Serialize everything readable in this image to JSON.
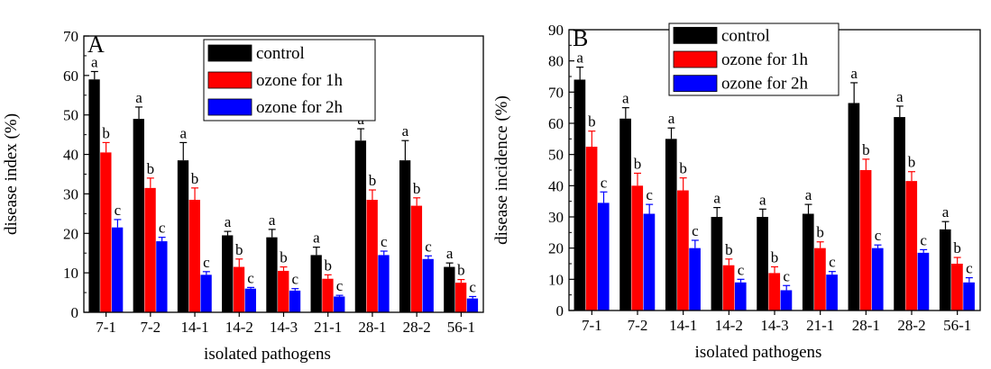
{
  "chart_data": [
    {
      "type": "bar",
      "panel": "A",
      "ylabel": "disease index (%)",
      "xlabel": "isolated pathogens",
      "ylim": [
        0,
        70
      ],
      "yticks": [
        0,
        10,
        20,
        30,
        40,
        50,
        60,
        70
      ],
      "categories": [
        "7-1",
        "7-2",
        "14-1",
        "14-2",
        "14-3",
        "21-1",
        "28-1",
        "28-2",
        "56-1"
      ],
      "legend_position": "top-center",
      "series": [
        {
          "name": "control",
          "color": "#000000",
          "values": [
            59,
            49,
            38.5,
            19.5,
            19,
            14.5,
            43.5,
            38.5,
            11.5
          ],
          "errors": [
            2,
            3,
            4.5,
            1,
            2,
            2,
            3,
            5,
            1
          ],
          "labels": [
            "a",
            "a",
            "a",
            "a",
            "a",
            "a",
            "a",
            "a",
            "a"
          ]
        },
        {
          "name": "ozone for 1h",
          "color": "#ff0000",
          "values": [
            40.5,
            31.5,
            28.5,
            11.5,
            10.5,
            8.5,
            28.5,
            27,
            7.5
          ],
          "errors": [
            2.5,
            2.5,
            3,
            2,
            1,
            1,
            2.5,
            2,
            0.8
          ],
          "labels": [
            "b",
            "b",
            "b",
            "b",
            "b",
            "b",
            "b",
            "b",
            "b"
          ]
        },
        {
          "name": "ozone for 2h",
          "color": "#0000ff",
          "values": [
            21.5,
            18,
            9.5,
            6,
            5.5,
            4,
            14.5,
            13.5,
            3.5
          ],
          "errors": [
            2,
            1,
            0.8,
            0.3,
            0.5,
            0.3,
            1,
            0.8,
            0.5
          ],
          "labels": [
            "c",
            "c",
            "c",
            "c",
            "c",
            "c",
            "c",
            "c",
            "c"
          ]
        }
      ]
    },
    {
      "type": "bar",
      "panel": "B",
      "ylabel": "disease incidence (%)",
      "xlabel": "isolated pathogens",
      "ylim": [
        0,
        90
      ],
      "yticks": [
        0,
        10,
        20,
        30,
        40,
        50,
        60,
        70,
        80,
        90
      ],
      "categories": [
        "7-1",
        "7-2",
        "14-1",
        "14-2",
        "14-3",
        "21-1",
        "28-1",
        "28-2",
        "56-1"
      ],
      "legend_position": "top-center",
      "series": [
        {
          "name": "control",
          "color": "#000000",
          "values": [
            74,
            61.5,
            55,
            30,
            30,
            31,
            66.5,
            62,
            26
          ],
          "errors": [
            4,
            3.5,
            3.5,
            3,
            2.5,
            3,
            6.5,
            3.5,
            2.5
          ],
          "labels": [
            "a",
            "a",
            "a",
            "a",
            "a",
            "a",
            "a",
            "a",
            "a"
          ]
        },
        {
          "name": "ozone for 1h",
          "color": "#ff0000",
          "values": [
            52.5,
            40,
            38.5,
            14.5,
            12,
            20,
            45,
            41.5,
            15
          ],
          "errors": [
            5,
            4,
            4,
            2,
            2,
            2,
            3.5,
            3,
            2
          ],
          "labels": [
            "b",
            "b",
            "b",
            "b",
            "b",
            "b",
            "b",
            "b",
            "b"
          ]
        },
        {
          "name": "ozone for 2h",
          "color": "#0000ff",
          "values": [
            34.5,
            31,
            20,
            9,
            6.5,
            11.5,
            20,
            18.5,
            9
          ],
          "errors": [
            3.5,
            3,
            2.5,
            1,
            1.5,
            1,
            1,
            1,
            1.5
          ],
          "labels": [
            "c",
            "c",
            "c",
            "c",
            "c",
            "c",
            "c",
            "c",
            "c"
          ]
        }
      ]
    }
  ]
}
